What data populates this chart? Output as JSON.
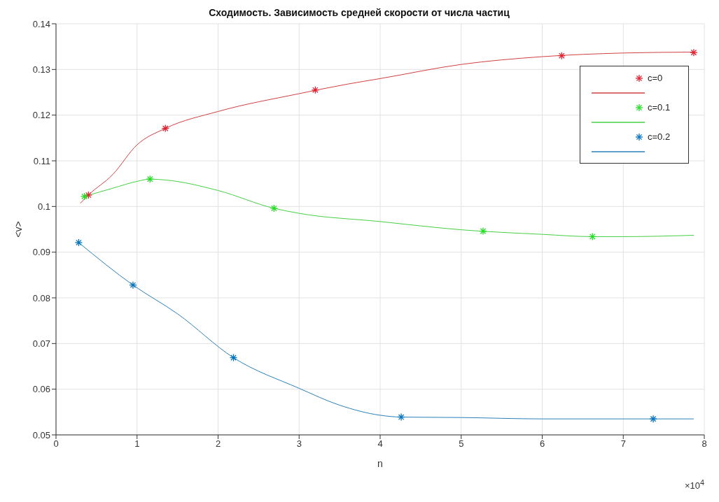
{
  "chart_data": {
    "type": "scatter",
    "title": "Сходимость. Зависимость средней скорости от числа частиц",
    "xlabel": "n",
    "ylabel": "<v>",
    "annotations": [
      "×10$^{4}$"
    ],
    "xlim": [
      0,
      8
    ],
    "xticks": [
      0,
      1,
      2,
      3,
      4,
      5,
      6,
      7,
      8
    ],
    "ylim": [
      0.05,
      0.14
    ],
    "yticks": [
      0.05,
      0.06,
      0.07,
      0.08,
      0.09,
      0.1,
      0.11,
      0.12,
      0.13,
      0.14
    ],
    "grid": true,
    "legend": "top right",
    "line_style": "solid",
    "series": [
      {
        "name": "c=0",
        "marker": "cross",
        "color": "#e02030",
        "x": [
          0.4,
          1.35,
          3.2,
          6.24,
          7.87
        ],
        "values": [
          0.1025,
          0.1171,
          0.1255,
          0.133,
          0.1337
        ]
      },
      {
        "type": "line",
        "color": "#d04040",
        "x": [
          0.3,
          0.4,
          0.7,
          1.0,
          1.35,
          2,
          3,
          3.6,
          4,
          5,
          6,
          7,
          7.87
        ],
        "values": [
          0.1007,
          0.1025,
          0.107,
          0.1135,
          0.1171,
          0.1208,
          0.1247,
          0.1268,
          0.128,
          0.1311,
          0.1328,
          0.1336,
          0.1338
        ]
      },
      {
        "name": "c=0.1",
        "marker": "cross",
        "color": "#22dd22",
        "x": [
          0.35,
          1.16,
          2.69,
          5.27,
          6.62
        ],
        "values": [
          0.1022,
          0.106,
          0.0996,
          0.0946,
          0.0934
        ]
      },
      {
        "type": "line",
        "color": "#44d044",
        "x": [
          0.35,
          0.7,
          1.0,
          1.16,
          1.35,
          2,
          2.69,
          3,
          4,
          5,
          6,
          6.62,
          7,
          7.87
        ],
        "values": [
          0.1022,
          0.104,
          0.1055,
          0.106,
          0.1058,
          0.1035,
          0.0996,
          0.0985,
          0.0967,
          0.0949,
          0.0939,
          0.0934,
          0.0934,
          0.0937
        ]
      },
      {
        "name": "c=0.2",
        "marker": "cross",
        "color": "#0072bd",
        "x": [
          0.28,
          0.95,
          2.19,
          4.26,
          7.37
        ],
        "values": [
          0.0921,
          0.0828,
          0.0669,
          0.0539,
          0.0535
        ]
      },
      {
        "type": "line",
        "color": "#2a80b8",
        "x": [
          0.28,
          0.95,
          1.5,
          2.19,
          3,
          3.5,
          4,
          4.26,
          5,
          6,
          7.37,
          7.87
        ],
        "values": [
          0.0921,
          0.0828,
          0.0765,
          0.0669,
          0.0602,
          0.0565,
          0.0543,
          0.0539,
          0.0538,
          0.0535,
          0.0535,
          0.0535
        ]
      }
    ]
  }
}
